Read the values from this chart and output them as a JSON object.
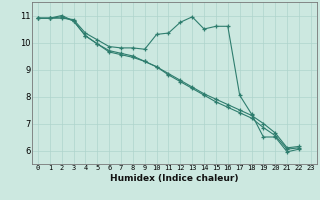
{
  "xlabel": "Humidex (Indice chaleur)",
  "xlim": [
    -0.5,
    23.5
  ],
  "ylim": [
    5.5,
    11.5
  ],
  "xticks": [
    0,
    1,
    2,
    3,
    4,
    5,
    6,
    7,
    8,
    9,
    10,
    11,
    12,
    13,
    14,
    15,
    16,
    17,
    18,
    19,
    20,
    21,
    22,
    23
  ],
  "yticks": [
    6,
    7,
    8,
    9,
    10,
    11
  ],
  "line_color": "#2e7d6e",
  "bg_color": "#cce8e0",
  "grid_color": "#afd4cc",
  "series": [
    [
      10.9,
      10.9,
      10.9,
      10.85,
      10.35,
      10.1,
      9.85,
      9.8,
      9.8,
      9.75,
      10.3,
      10.35,
      10.75,
      10.95,
      10.5,
      10.6,
      10.6,
      8.05,
      7.35,
      6.5,
      6.5,
      5.95,
      6.05
    ],
    [
      10.9,
      10.9,
      11.0,
      10.8,
      10.25,
      9.95,
      9.7,
      9.6,
      9.5,
      9.3,
      9.1,
      8.8,
      8.55,
      8.3,
      8.05,
      7.8,
      7.6,
      7.4,
      7.2,
      6.85,
      6.55,
      6.05,
      6.1
    ],
    [
      10.9,
      10.9,
      10.95,
      10.8,
      10.25,
      9.95,
      9.65,
      9.55,
      9.45,
      9.3,
      9.1,
      8.85,
      8.6,
      8.35,
      8.1,
      7.9,
      7.7,
      7.5,
      7.3,
      7.0,
      6.65,
      6.1,
      6.15
    ]
  ]
}
